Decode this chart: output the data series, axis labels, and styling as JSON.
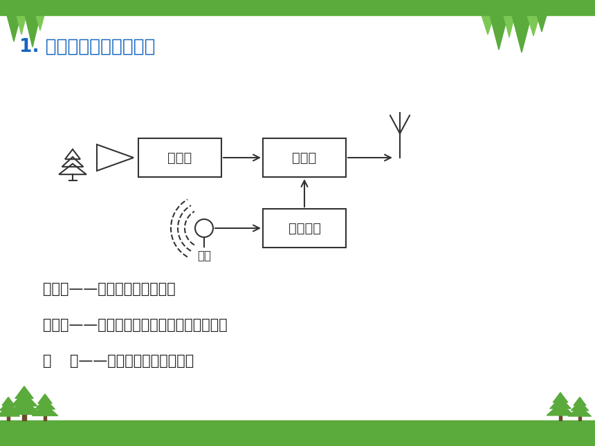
{
  "title": "1. 图像信号发射工作过程",
  "title_color": "#1565C0",
  "bg_color": "#ffffff",
  "top_bar_color": "#5aaa3c",
  "bottom_bar_color": "#5aaa3c",
  "box1_label": "摄像机",
  "box2_label": "发射机",
  "box3_label": "音频放大",
  "mic_label": "话筒",
  "desc1": "摄像机——将图像转换成电信号",
  "desc2": "发射机——将电信号加载到频率很高的电流上",
  "desc3": "天    线——将高频信号发射到空中",
  "text_color": "#222222",
  "diagram_color": "#333333",
  "green_dark": "#4a9a2e",
  "green_mid": "#5aaa3c",
  "green_light": "#7dc855"
}
